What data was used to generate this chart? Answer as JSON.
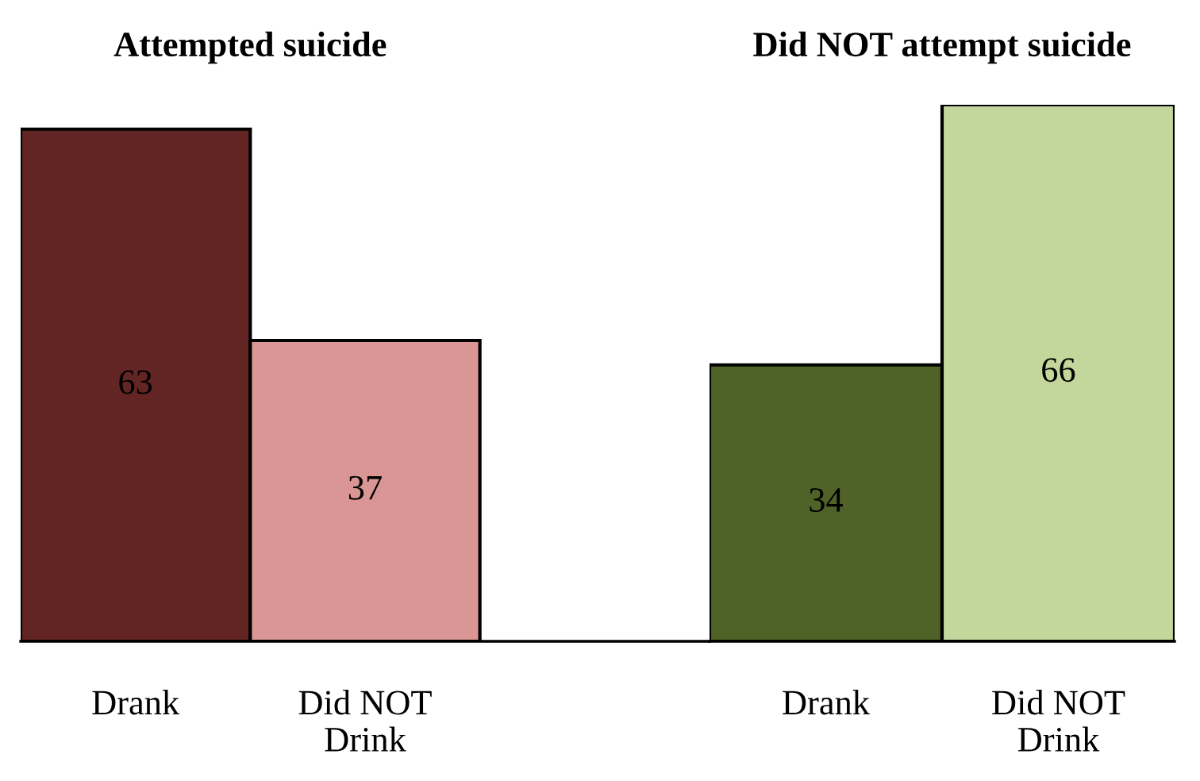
{
  "chart_data": [
    {
      "type": "bar",
      "title": "Attempted suicide",
      "categories": [
        "Drank",
        "Did NOT\nDrink"
      ],
      "values": [
        63,
        37
      ],
      "colors": [
        "#632523",
        "#d99694"
      ],
      "data_labels": true
    },
    {
      "type": "bar",
      "title": "Did NOT attempt suicide",
      "categories": [
        "Drank",
        "Did NOT\nDrink"
      ],
      "values": [
        34,
        66
      ],
      "colors": [
        "#4f6228",
        "#c3d69b"
      ],
      "data_labels": true
    }
  ]
}
